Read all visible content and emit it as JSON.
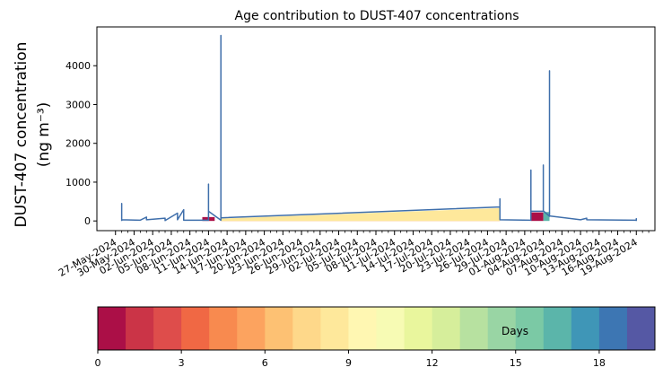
{
  "chart_data": {
    "type": "area",
    "title": "Age contribution to DUST-407 concentrations",
    "ylabel_line1": "DUST-407 concentration",
    "ylabel_line2": "(ng m⁻³)",
    "xlabel": "",
    "ylim": [
      -250,
      5000
    ],
    "xlim": [
      "2024-05-24",
      "2024-08-22"
    ],
    "y_ticks": [
      0,
      1000,
      2000,
      3000,
      4000
    ],
    "x_tick_dates": [
      "2024-05-27",
      "2024-05-30",
      "2024-06-02",
      "2024-06-05",
      "2024-06-08",
      "2024-06-11",
      "2024-06-14",
      "2024-06-17",
      "2024-06-20",
      "2024-06-23",
      "2024-06-26",
      "2024-06-29",
      "2024-07-02",
      "2024-07-05",
      "2024-07-08",
      "2024-07-11",
      "2024-07-14",
      "2024-07-17",
      "2024-07-20",
      "2024-07-23",
      "2024-07-26",
      "2024-07-29",
      "2024-08-01",
      "2024-08-04",
      "2024-08-07",
      "2024-08-10",
      "2024-08-13",
      "2024-08-16",
      "2024-08-19"
    ],
    "x_tick_labels": [
      "27-May-2024",
      "30-May-2024",
      "02-Jun-2024",
      "05-Jun-2024",
      "08-Jun-2024",
      "11-Jun-2024",
      "14-Jun-2024",
      "17-Jun-2024",
      "20-Jun-2024",
      "23-Jun-2024",
      "26-Jun-2024",
      "29-Jun-2024",
      "02-Jul-2024",
      "05-Jul-2024",
      "08-Jul-2024",
      "11-Jul-2024",
      "14-Jul-2024",
      "17-Jul-2024",
      "20-Jul-2024",
      "23-Jul-2024",
      "26-Jul-2024",
      "29-Jul-2024",
      "01-Aug-2024",
      "04-Aug-2024",
      "07-Aug-2024",
      "10-Aug-2024",
      "13-Aug-2024",
      "16-Aug-2024",
      "19-Aug-2024"
    ],
    "total_series": [
      [
        "2024-05-28",
        0
      ],
      [
        "2024-05-28",
        450
      ],
      [
        "2024-05-28",
        30
      ],
      [
        "2024-05-31",
        20
      ],
      [
        "2024-06-01",
        100
      ],
      [
        "2024-06-01",
        30
      ],
      [
        "2024-06-04",
        70
      ],
      [
        "2024-06-04",
        10
      ],
      [
        "2024-06-06",
        200
      ],
      [
        "2024-06-06",
        30
      ],
      [
        "2024-06-07",
        290
      ],
      [
        "2024-06-07",
        20
      ],
      [
        "2024-06-11",
        20
      ],
      [
        "2024-06-11",
        950
      ],
      [
        "2024-06-11",
        250
      ],
      [
        "2024-06-13",
        20
      ],
      [
        "2024-06-13",
        4780
      ],
      [
        "2024-06-13",
        80
      ],
      [
        "2024-07-28",
        360
      ],
      [
        "2024-07-28",
        570
      ],
      [
        "2024-07-28",
        30
      ],
      [
        "2024-08-02",
        20
      ],
      [
        "2024-08-02",
        1310
      ],
      [
        "2024-08-02",
        250
      ],
      [
        "2024-08-04",
        250
      ],
      [
        "2024-08-04",
        1440
      ],
      [
        "2024-08-04",
        260
      ],
      [
        "2024-08-05",
        120
      ],
      [
        "2024-08-05",
        3870
      ],
      [
        "2024-08-05",
        130
      ],
      [
        "2024-08-10",
        30
      ],
      [
        "2024-08-11",
        70
      ],
      [
        "2024-08-11",
        30
      ],
      [
        "2024-08-19",
        20
      ],
      [
        "2024-08-19",
        60
      ],
      [
        "2024-08-19",
        0
      ]
    ],
    "age_band_areas": [
      {
        "age_days": 4,
        "points": [
          [
            "2024-06-13",
            40
          ],
          [
            "2024-07-28",
            280
          ]
        ]
      },
      {
        "age_days": 8,
        "points": [
          [
            "2024-06-13",
            60
          ],
          [
            "2024-07-28",
            330
          ]
        ]
      },
      {
        "age_days": 0,
        "points": [
          [
            "2024-06-10",
            100
          ],
          [
            "2024-06-12",
            100
          ]
        ]
      },
      {
        "age_days": 0,
        "points": [
          [
            "2024-08-02",
            220
          ],
          [
            "2024-08-04",
            220
          ]
        ]
      },
      {
        "age_days": 16,
        "points": [
          [
            "2024-08-04",
            230
          ],
          [
            "2024-08-05",
            230
          ]
        ]
      }
    ],
    "colorbar": {
      "label": "Days",
      "min": 0,
      "max": 20,
      "ticks": [
        0,
        3,
        6,
        9,
        12,
        15,
        18
      ],
      "colors": [
        "#ab0f47",
        "#cb3447",
        "#de4d4b",
        "#f06844",
        "#f88a4f",
        "#fca35f",
        "#fdc173",
        "#fed88a",
        "#fee89b",
        "#fff7b2",
        "#f7fbb4",
        "#e9f69d",
        "#d6ee9b",
        "#b7e1a0",
        "#99d5a4",
        "#7bc9a5",
        "#5bb5aa",
        "#3f96b7",
        "#3d76b3",
        "#5558a4"
      ]
    },
    "line_color": "#3f6fab",
    "grid": false,
    "legend": "none"
  }
}
